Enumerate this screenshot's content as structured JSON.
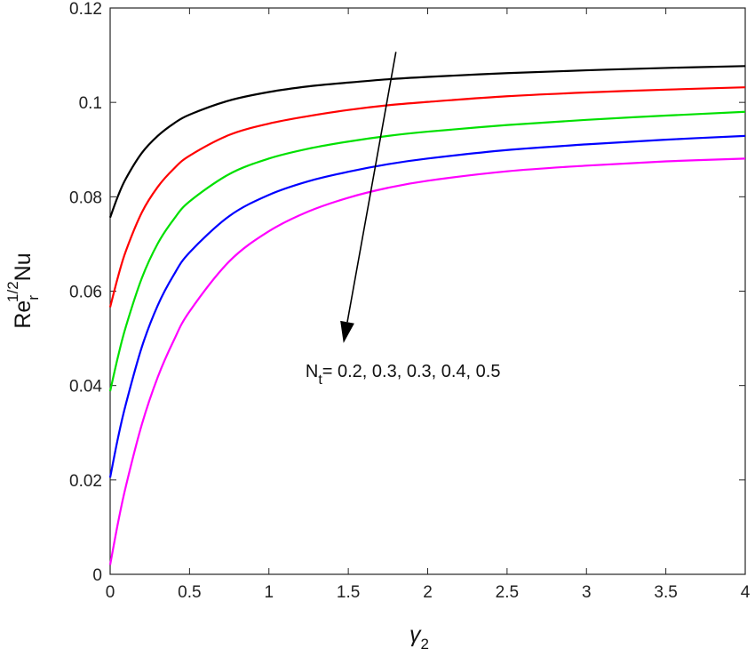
{
  "chart_data": {
    "type": "line",
    "xlabel": {
      "main": "γ",
      "sub": "2"
    },
    "ylabel": {
      "main": "Re",
      "sub": "r",
      "sup": "1/2",
      "tail": "Nu"
    },
    "xlim": [
      0,
      4
    ],
    "ylim": [
      0,
      0.12
    ],
    "xticks": [
      "0",
      "0.5",
      "1",
      "1.5",
      "2",
      "2.5",
      "3",
      "3.5",
      "4"
    ],
    "yticks": [
      "0",
      "0.02",
      "0.04",
      "0.06",
      "0.08",
      "0.1",
      "0.12"
    ],
    "grid": false,
    "x": [
      0,
      0.05,
      0.1,
      0.2,
      0.3,
      0.4,
      0.5,
      0.75,
      1,
      1.25,
      1.5,
      1.75,
      2,
      2.5,
      3,
      3.5,
      4
    ],
    "series": [
      {
        "color": "#000000",
        "values": [
          0.0756,
          0.0802,
          0.0839,
          0.0893,
          0.0929,
          0.0955,
          0.0974,
          0.1004,
          0.1022,
          0.1034,
          0.1042,
          0.1049,
          0.1054,
          0.1062,
          0.1068,
          0.1073,
          0.1077
        ]
      },
      {
        "color": "#ff0000",
        "values": [
          0.0566,
          0.0631,
          0.0686,
          0.0767,
          0.0821,
          0.0859,
          0.0887,
          0.0931,
          0.0955,
          0.0971,
          0.0984,
          0.0994,
          0.1001,
          0.1013,
          0.1021,
          0.1027,
          0.1032
        ]
      },
      {
        "color": "#00e000",
        "values": [
          0.0388,
          0.0462,
          0.0526,
          0.0628,
          0.0701,
          0.0752,
          0.079,
          0.0848,
          0.0881,
          0.0902,
          0.0917,
          0.0929,
          0.0938,
          0.0952,
          0.0963,
          0.0972,
          0.098
        ]
      },
      {
        "color": "#0000ff",
        "values": [
          0.0205,
          0.029,
          0.0362,
          0.0482,
          0.057,
          0.0634,
          0.0682,
          0.0759,
          0.0804,
          0.0833,
          0.0853,
          0.0869,
          0.0881,
          0.0899,
          0.0911,
          0.0921,
          0.0929
        ]
      },
      {
        "color": "#ff00ff",
        "values": [
          0.002,
          0.011,
          0.0188,
          0.0318,
          0.0418,
          0.0495,
          0.0557,
          0.0663,
          0.0727,
          0.0769,
          0.0798,
          0.0819,
          0.0834,
          0.0854,
          0.0866,
          0.0875,
          0.0881
        ]
      }
    ],
    "annotation": {
      "text_main": "N",
      "text_sub": "t",
      "text_rest": "= 0.2, 0.3, 0.3, 0.4, 0.5",
      "arrow_from": [
        1.8,
        0.1107
      ],
      "arrow_to": [
        1.47,
        0.049
      ],
      "label_at": [
        1.23,
        0.0418
      ]
    }
  }
}
